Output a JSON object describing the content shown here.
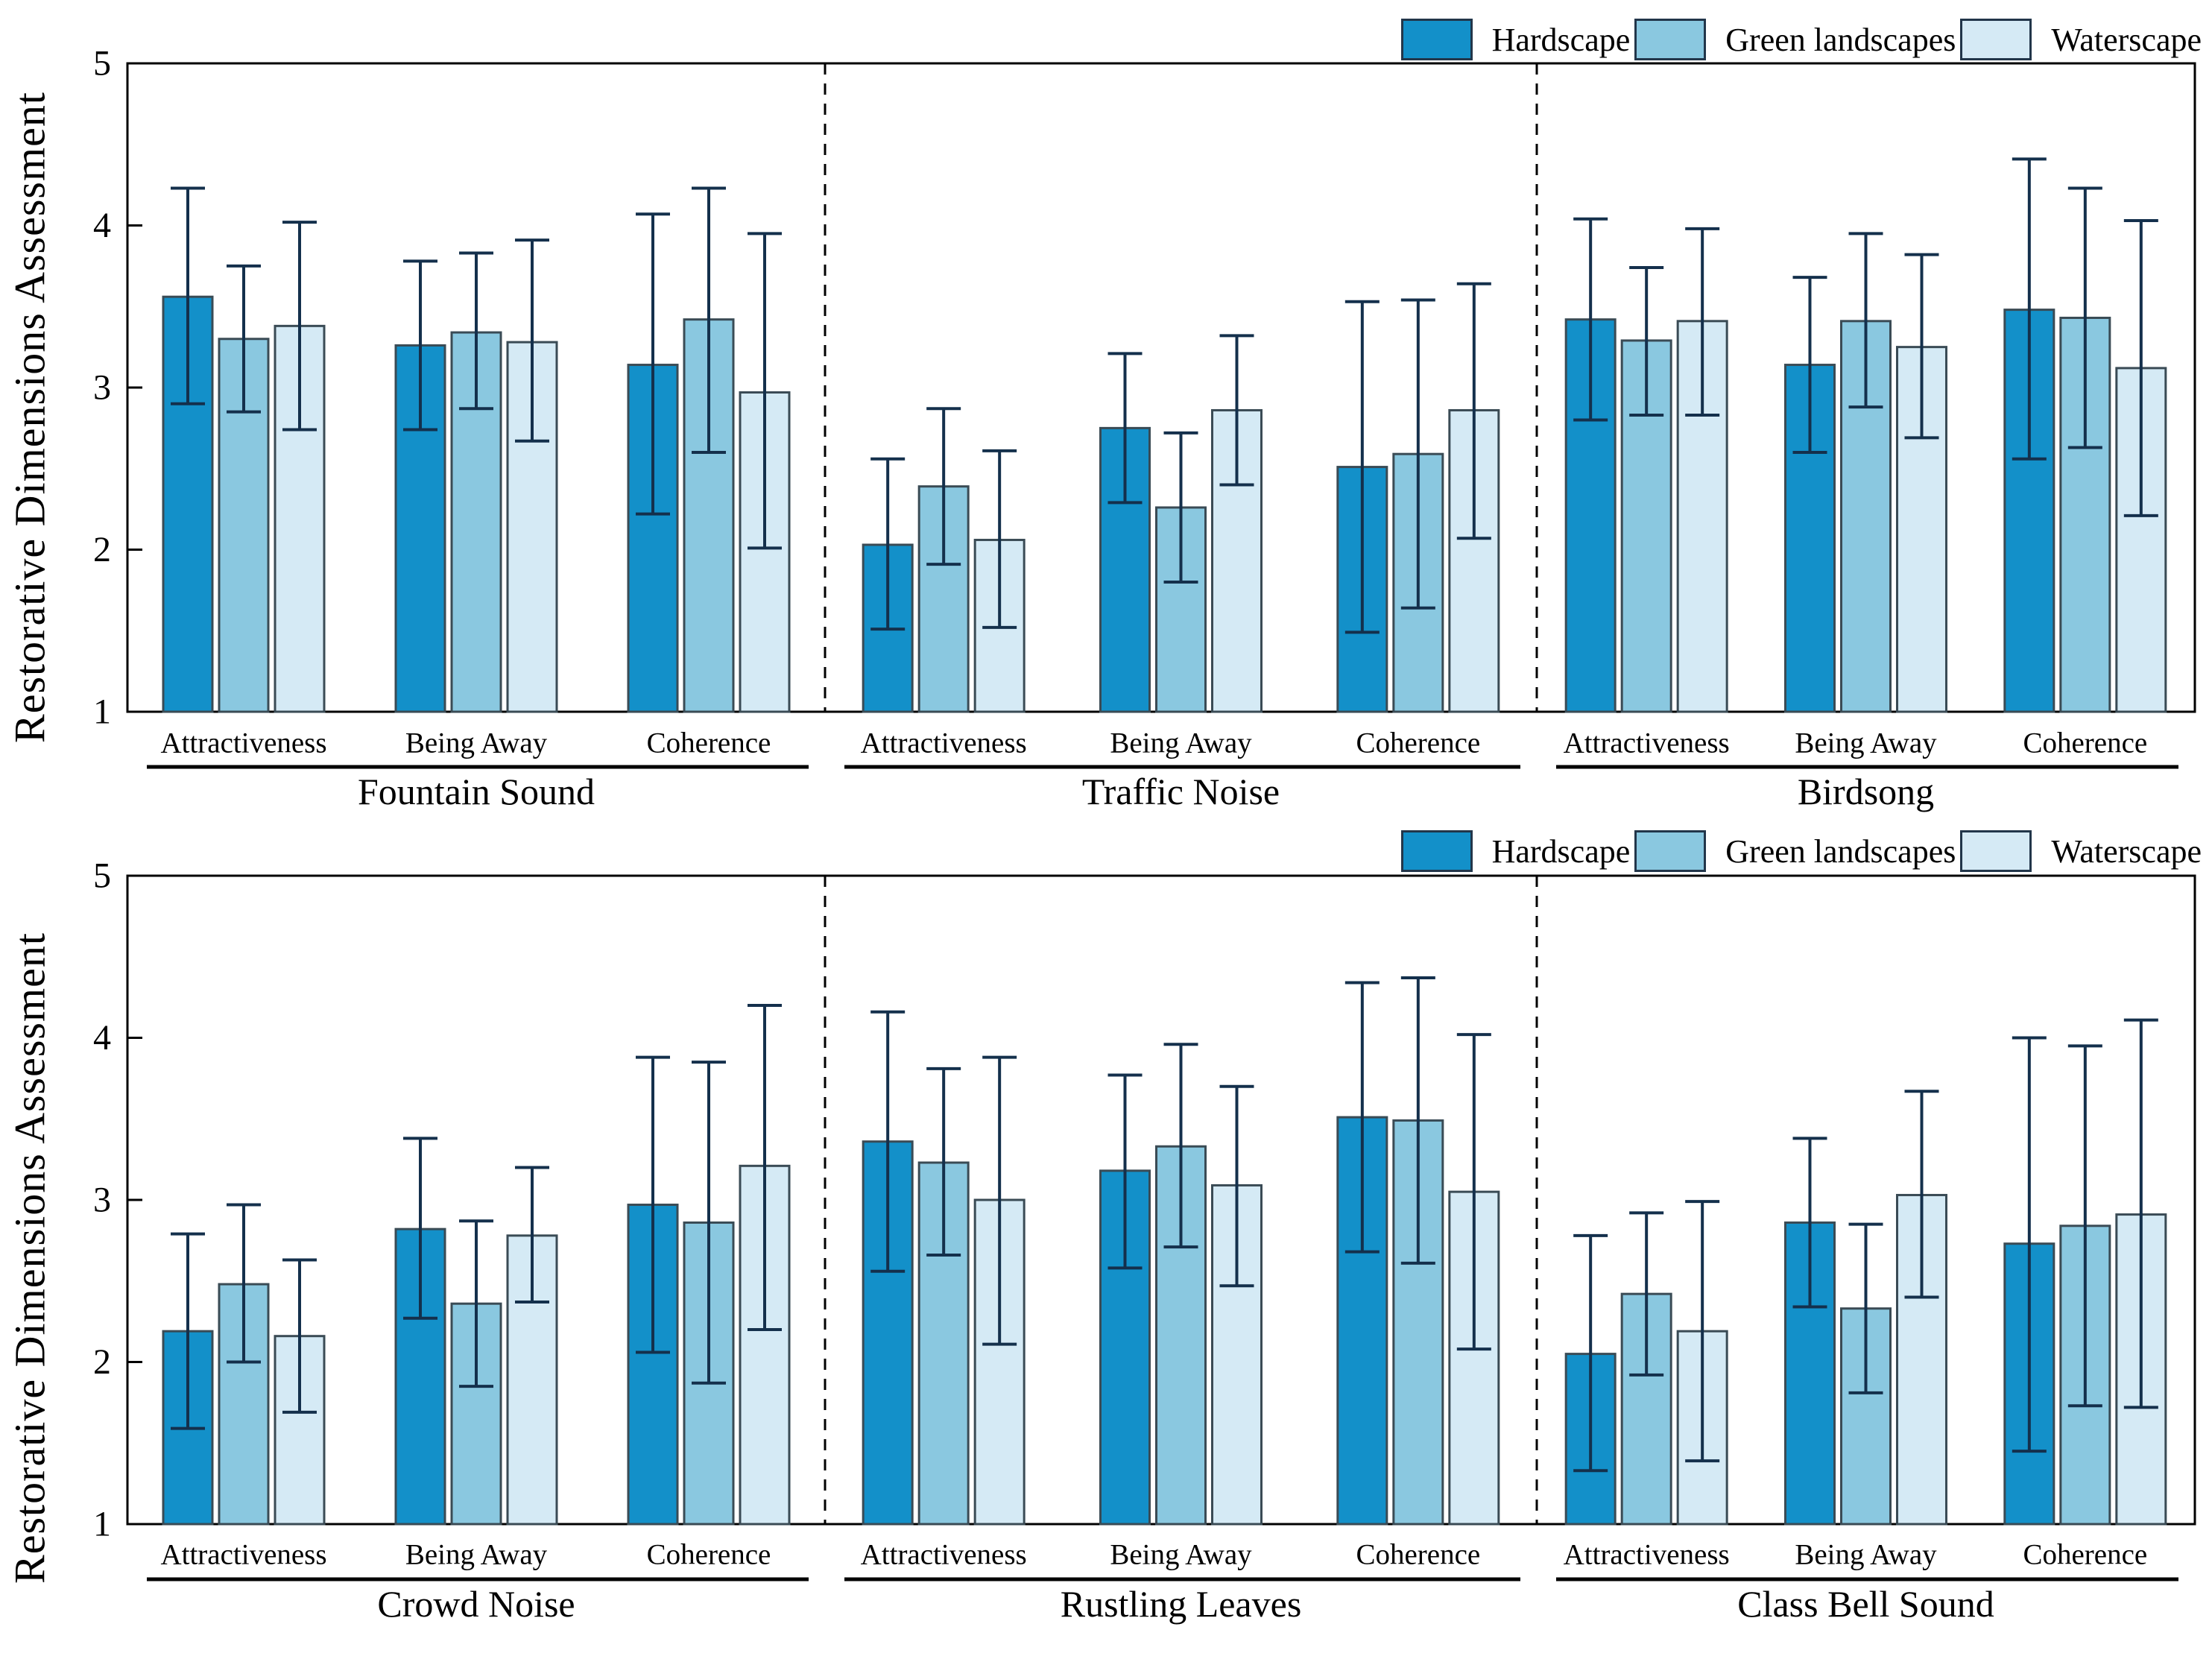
{
  "figure": {
    "background": "#ffffff",
    "y_axis_title": "Restorative Dimensions Assessment"
  },
  "style": {
    "hardscape_color": "#1390C9",
    "green_landscapes_color": "#8AC8E0",
    "waterscape_color": "#D5EAF5",
    "bar_edge_color": "#3A4B55",
    "error_bar_color": "#14304C",
    "axis_color": "#000000"
  },
  "chart_data": [
    {
      "type": "bar",
      "panel": "top",
      "ylabel": "Restorative Dimensions Assessment",
      "ylim": [
        1,
        5
      ],
      "yticks": [
        1,
        2,
        3,
        4,
        5
      ],
      "grid": false,
      "legend_position": "top-right",
      "legend": [
        {
          "label": "Hardscape",
          "color": "#1390C9"
        },
        {
          "label": "Green landscapes",
          "color": "#8AC8E0"
        },
        {
          "label": "Waterscape",
          "color": "#D5EAF5"
        }
      ],
      "sections": [
        {
          "title": "Fountain Sound",
          "categories": [
            "Attractiveness",
            "Being Away",
            "Coherence"
          ],
          "series": [
            {
              "name": "Hardscape",
              "values": [
                3.56,
                3.26,
                3.14
              ],
              "err_low": [
                2.9,
                2.74,
                2.22
              ],
              "err_high": [
                4.23,
                3.78,
                4.07
              ]
            },
            {
              "name": "Green landscapes",
              "values": [
                3.3,
                3.34,
                3.42
              ],
              "err_low": [
                2.85,
                2.87,
                2.6
              ],
              "err_high": [
                3.75,
                3.83,
                4.23
              ]
            },
            {
              "name": "Waterscape",
              "values": [
                3.38,
                3.28,
                2.97
              ],
              "err_low": [
                2.74,
                2.67,
                2.01
              ],
              "err_high": [
                4.02,
                3.91,
                3.95
              ]
            }
          ]
        },
        {
          "title": "Traffic Noise",
          "categories": [
            "Attractiveness",
            "Being Away",
            "Coherence"
          ],
          "series": [
            {
              "name": "Hardscape",
              "values": [
                2.03,
                2.75,
                2.51
              ],
              "err_low": [
                1.51,
                2.29,
                1.49
              ],
              "err_high": [
                2.56,
                3.21,
                3.53
              ]
            },
            {
              "name": "Green landscapes",
              "values": [
                2.39,
                2.26,
                2.59
              ],
              "err_low": [
                1.91,
                1.8,
                1.64
              ],
              "err_high": [
                2.87,
                2.72,
                3.54
              ]
            },
            {
              "name": "Waterscape",
              "values": [
                2.06,
                2.86,
                2.86
              ],
              "err_low": [
                1.52,
                2.4,
                2.07
              ],
              "err_high": [
                2.61,
                3.32,
                3.64
              ]
            }
          ]
        },
        {
          "title": "Birdsong",
          "categories": [
            "Attractiveness",
            "Being Away",
            "Coherence"
          ],
          "series": [
            {
              "name": "Hardscape",
              "values": [
                3.42,
                3.14,
                3.48
              ],
              "err_low": [
                2.8,
                2.6,
                2.56
              ],
              "err_high": [
                4.04,
                3.68,
                4.41
              ]
            },
            {
              "name": "Green landscapes",
              "values": [
                3.29,
                3.41,
                3.43
              ],
              "err_low": [
                2.83,
                2.88,
                2.63
              ],
              "err_high": [
                3.74,
                3.95,
                4.23
              ]
            },
            {
              "name": "Waterscape",
              "values": [
                3.41,
                3.25,
                3.12
              ],
              "err_low": [
                2.83,
                2.69,
                2.21
              ],
              "err_high": [
                3.98,
                3.82,
                4.03
              ]
            }
          ]
        }
      ]
    },
    {
      "type": "bar",
      "panel": "bottom",
      "ylabel": "Restorative Dimensions Assessment",
      "ylim": [
        1,
        5
      ],
      "yticks": [
        1,
        2,
        3,
        4,
        5
      ],
      "grid": false,
      "legend_position": "top-right",
      "legend": [
        {
          "label": "Hardscape",
          "color": "#1390C9"
        },
        {
          "label": "Green landscapes",
          "color": "#8AC8E0"
        },
        {
          "label": "Waterscape",
          "color": "#D5EAF5"
        }
      ],
      "sections": [
        {
          "title": "Crowd Noise",
          "categories": [
            "Attractiveness",
            "Being Away",
            "Coherence"
          ],
          "series": [
            {
              "name": "Hardscape",
              "values": [
                2.19,
                2.82,
                2.97
              ],
              "err_low": [
                1.59,
                2.27,
                2.06
              ],
              "err_high": [
                2.79,
                3.38,
                3.88
              ]
            },
            {
              "name": "Green landscapes",
              "values": [
                2.48,
                2.36,
                2.86
              ],
              "err_low": [
                2.0,
                1.85,
                1.87
              ],
              "err_high": [
                2.97,
                2.87,
                3.85
              ]
            },
            {
              "name": "Waterscape",
              "values": [
                2.16,
                2.78,
                3.21
              ],
              "err_low": [
                1.69,
                2.37,
                2.2
              ],
              "err_high": [
                2.63,
                3.2,
                4.2
              ]
            }
          ]
        },
        {
          "title": "Rustling Leaves",
          "categories": [
            "Attractiveness",
            "Being Away",
            "Coherence"
          ],
          "series": [
            {
              "name": "Hardscape",
              "values": [
                3.36,
                3.18,
                3.51
              ],
              "err_low": [
                2.56,
                2.58,
                2.68
              ],
              "err_high": [
                4.16,
                3.77,
                4.34
              ]
            },
            {
              "name": "Green landscapes",
              "values": [
                3.23,
                3.33,
                3.49
              ],
              "err_low": [
                2.66,
                2.71,
                2.61
              ],
              "err_high": [
                3.81,
                3.96,
                4.37
              ]
            },
            {
              "name": "Waterscape",
              "values": [
                3.0,
                3.09,
                3.05
              ],
              "err_low": [
                2.11,
                2.47,
                2.08
              ],
              "err_high": [
                3.88,
                3.7,
                4.02
              ]
            }
          ]
        },
        {
          "title": "Class Bell Sound",
          "categories": [
            "Attractiveness",
            "Being Away",
            "Coherence"
          ],
          "series": [
            {
              "name": "Hardscape",
              "values": [
                2.05,
                2.86,
                2.73
              ],
              "err_low": [
                1.33,
                2.34,
                1.45
              ],
              "err_high": [
                2.78,
                3.38,
                4.0
              ]
            },
            {
              "name": "Green landscapes",
              "values": [
                2.42,
                2.33,
                2.84
              ],
              "err_low": [
                1.92,
                1.81,
                1.73
              ],
              "err_high": [
                2.92,
                2.85,
                3.95
              ]
            },
            {
              "name": "Waterscape",
              "values": [
                2.19,
                3.03,
                2.91
              ],
              "err_low": [
                1.39,
                2.4,
                1.72
              ],
              "err_high": [
                2.99,
                3.67,
                4.11
              ]
            }
          ]
        }
      ]
    }
  ]
}
